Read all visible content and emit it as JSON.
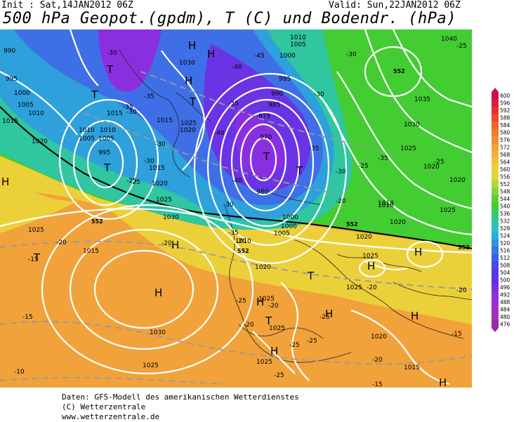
{
  "header": {
    "init": "Init : Sat,14JAN2012 06Z",
    "valid": "Valid: Sun,22JAN2012 06Z",
    "title": "500 hPa Geopot.(gpdm), T (C) und Bodendr. (hPa)"
  },
  "footer": {
    "line1": "Daten: GFS-Modell des amerikanischen Wetterdienstes",
    "line2": "(C) Wetterzentrale",
    "line3": "www.wetterzentrale.de"
  },
  "colors": {
    "orange": "#f2a23a",
    "yellow": "#ecd03a",
    "green": "#44cc33",
    "teal": "#2fc6a0",
    "blue": "#3f6fe6",
    "purple": "#8a2fe0"
  },
  "legend": {
    "values": [
      "600",
      "596",
      "592",
      "588",
      "584",
      "580",
      "576",
      "572",
      "568",
      "564",
      "560",
      "556",
      "552",
      "548",
      "544",
      "540",
      "536",
      "532",
      "528",
      "524",
      "520",
      "516",
      "512",
      "508",
      "504",
      "500",
      "496",
      "492",
      "488",
      "484",
      "480",
      "476"
    ],
    "colors": [
      "#c8104a",
      "#d81e3a",
      "#e2302e",
      "#ea4a2a",
      "#ee6428",
      "#f07a2a",
      "#f28e30",
      "#f2a23a",
      "#f0b43a",
      "#eec43a",
      "#ecd03a",
      "#d8d838",
      "#b0d83a",
      "#84d43a",
      "#5ccf36",
      "#44cc33",
      "#36c86e",
      "#2fc6a0",
      "#2ac2c4",
      "#2aaed8",
      "#2e92e2",
      "#3278e8",
      "#3a60e8",
      "#4448e8",
      "#5238e6",
      "#6230e4",
      "#7a2ee2",
      "#8a2fe0",
      "#9a2ed6",
      "#a42ec6",
      "#aa2eb6",
      "#9a2aa6"
    ]
  },
  "map_labels": {
    "highs": [
      "H",
      "H",
      "H",
      "H",
      "H",
      "H",
      "H",
      "H",
      "H",
      "H",
      "H",
      "H",
      "H"
    ],
    "lows": [
      "T",
      "T",
      "T",
      "T",
      "T",
      "T",
      "T",
      "T",
      "T"
    ],
    "pressure": [
      "990",
      "995",
      "1000",
      "1005",
      "1010",
      "1015",
      "1020",
      "1015",
      "1010",
      "1005",
      "995",
      "1030",
      "1025",
      "1020",
      "1015",
      "1010",
      "1005",
      "1000",
      "995",
      "990",
      "985",
      "980",
      "975",
      "970",
      "1010",
      "1005",
      "1025",
      "1020",
      "1015",
      "1030",
      "1035",
      "1040",
      "1025",
      "1020",
      "1010",
      "1020",
      "1030",
      "1025",
      "1025",
      "1015",
      "1020",
      "1025",
      "1025",
      "1025",
      "1020",
      "1030",
      "1025",
      "1025",
      "1015",
      "1010",
      "1005",
      "1000",
      "1000",
      "1025",
      "1020",
      "1010",
      "1020"
    ],
    "temps": [
      "-30",
      "-35",
      "-35",
      "-25",
      "-30",
      "-30",
      "-40",
      "-45",
      "-40",
      "-35",
      "-30",
      "-40",
      "-35",
      "-30",
      "-25",
      "-35",
      "-25",
      "-30",
      "-25",
      "-35",
      "-30",
      "-30",
      "-25",
      "-20",
      "-20",
      "-20",
      "-20",
      "-20",
      "-15",
      "-20",
      "-25",
      "-20",
      "-25",
      "-25",
      "-15",
      "-25",
      "-20",
      "-25",
      "-15",
      "-10",
      "-20",
      "-15"
    ],
    "gpdm": [
      "552",
      "552",
      "552",
      "552",
      "552"
    ]
  }
}
